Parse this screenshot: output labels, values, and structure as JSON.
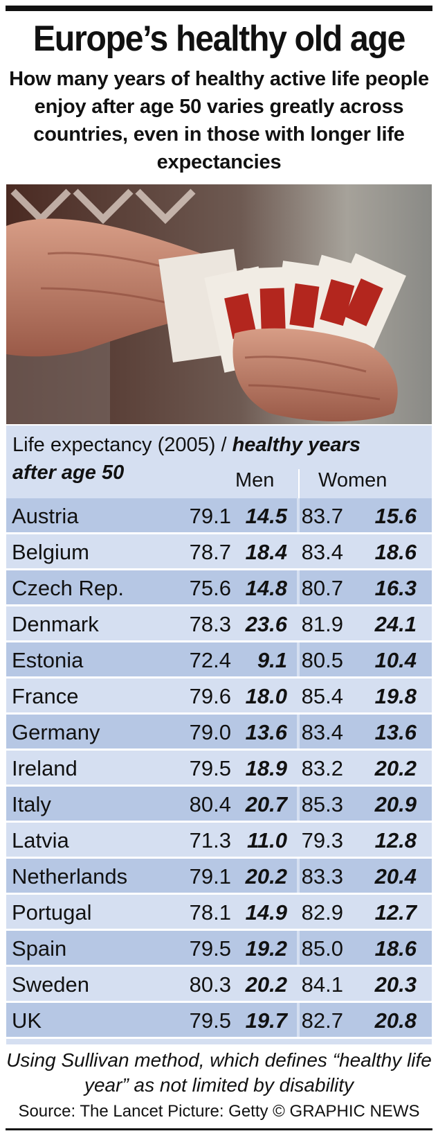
{
  "header": {
    "title": "Europe’s healthy old age",
    "subtitle": "How many years of healthy active life people enjoy after age 50 varies greatly across countries, even in those with longer life expectancies"
  },
  "table_header": {
    "label_plain": "Life expectancy (2005) / ",
    "label_bold": "healthy years after age 50",
    "col_men": "Men",
    "col_women": "Women"
  },
  "colors": {
    "row_dark": "#b6c7e4",
    "row_light": "#d5dff1",
    "rule": "#111111"
  },
  "chart_data": {
    "type": "table",
    "columns": [
      "Country",
      "Men life expectancy (2005)",
      "Men healthy years after age 50",
      "Women life expectancy (2005)",
      "Women healthy years after age 50"
    ],
    "rows": [
      {
        "country": "Austria",
        "men_le": "79.1",
        "men_hy": "14.5",
        "women_le": "83.7",
        "women_hy": "15.6"
      },
      {
        "country": "Belgium",
        "men_le": "78.7",
        "men_hy": "18.4",
        "women_le": "83.4",
        "women_hy": "18.6"
      },
      {
        "country": "Czech Rep.",
        "men_le": "75.6",
        "men_hy": "14.8",
        "women_le": "80.7",
        "women_hy": "16.3"
      },
      {
        "country": "Denmark",
        "men_le": "78.3",
        "men_hy": "23.6",
        "women_le": "81.9",
        "women_hy": "24.1"
      },
      {
        "country": "Estonia",
        "men_le": "72.4",
        "men_hy": "9.1",
        "women_le": "80.5",
        "women_hy": "10.4"
      },
      {
        "country": "France",
        "men_le": "79.6",
        "men_hy": "18.0",
        "women_le": "85.4",
        "women_hy": "19.8"
      },
      {
        "country": "Germany",
        "men_le": "79.0",
        "men_hy": "13.6",
        "women_le": "83.4",
        "women_hy": "13.6"
      },
      {
        "country": "Ireland",
        "men_le": "79.5",
        "men_hy": "18.9",
        "women_le": "83.2",
        "women_hy": "20.2"
      },
      {
        "country": "Italy",
        "men_le": "80.4",
        "men_hy": "20.7",
        "women_le": "85.3",
        "women_hy": "20.9"
      },
      {
        "country": "Latvia",
        "men_le": "71.3",
        "men_hy": "11.0",
        "women_le": "79.3",
        "women_hy": "12.8"
      },
      {
        "country": "Netherlands",
        "men_le": "79.1",
        "men_hy": "20.2",
        "women_le": "83.3",
        "women_hy": "20.4"
      },
      {
        "country": "Portugal",
        "men_le": "78.1",
        "men_hy": "14.9",
        "women_le": "82.9",
        "women_hy": "12.7"
      },
      {
        "country": "Spain",
        "men_le": "79.5",
        "men_hy": "19.2",
        "women_le": "85.0",
        "women_hy": "18.6"
      },
      {
        "country": "Sweden",
        "men_le": "80.3",
        "men_hy": "20.2",
        "women_le": "84.1",
        "women_hy": "20.3"
      },
      {
        "country": "UK",
        "men_le": "79.5",
        "men_hy": "19.7",
        "women_le": "82.7",
        "women_hy": "20.8"
      }
    ]
  },
  "footer": {
    "note": "Using Sullivan method, which defines “healthy life year” as not limited by disability",
    "source": "Source: The Lancet Picture: Getty © GRAPHIC NEWS"
  }
}
